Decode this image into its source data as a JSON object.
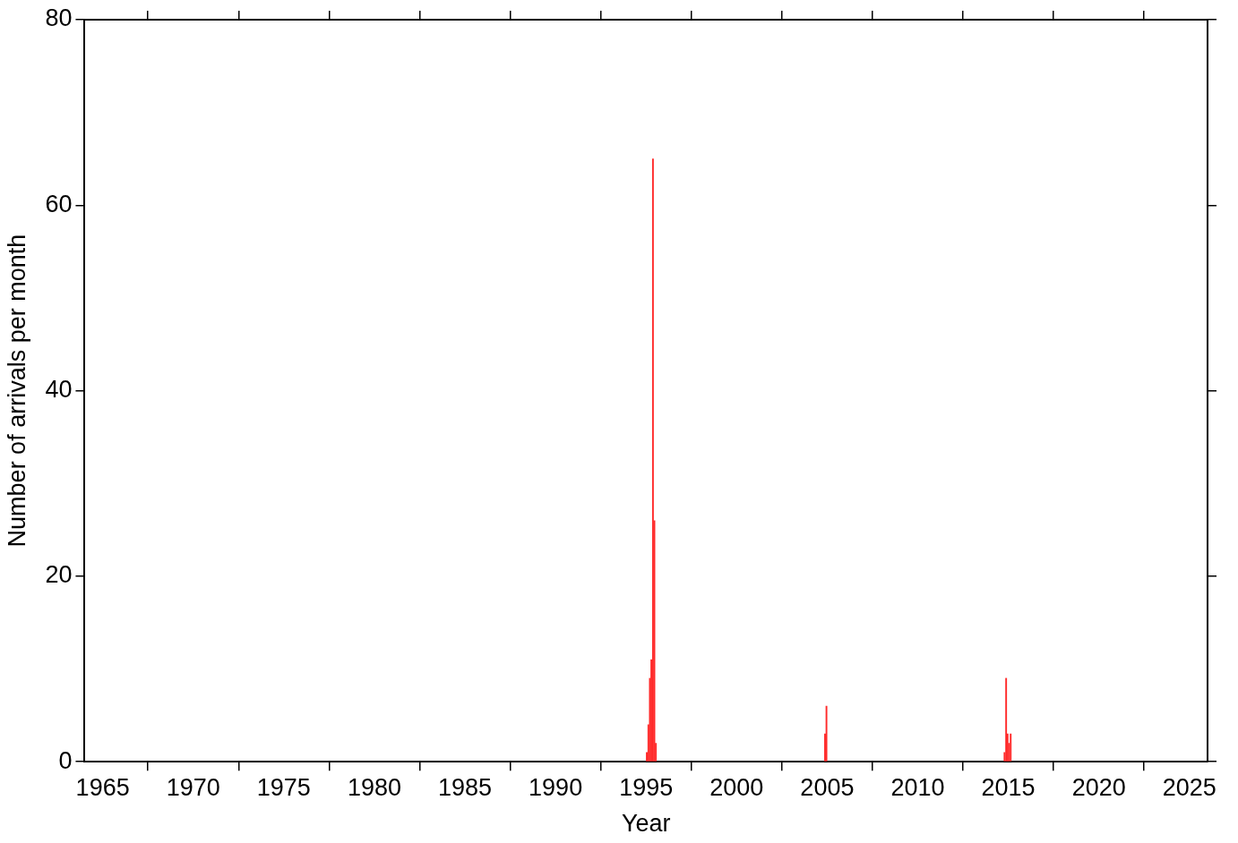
{
  "chart_data": {
    "type": "bar",
    "xlabel": "Year",
    "ylabel": "Number of arrivals per month",
    "x": [
      1995.04,
      1995.13,
      1995.21,
      1995.29,
      1995.38,
      1995.46,
      1995.54,
      2004.88,
      2004.96,
      2014.79,
      2014.88,
      2014.96,
      2015.04,
      2015.13
    ],
    "values": [
      1,
      4,
      9,
      11,
      65,
      26,
      2,
      3,
      6,
      1,
      9,
      3,
      2,
      3
    ],
    "color": "#ff2a2a",
    "xlim": [
      1964,
      2026
    ],
    "xticks": [
      1965,
      1970,
      1975,
      1980,
      1985,
      1990,
      1995,
      2000,
      2005,
      2010,
      2015,
      2020,
      2025
    ],
    "ylim": [
      0,
      80
    ],
    "yticks": [
      0,
      20,
      40,
      60,
      80
    ],
    "grid": false,
    "legend": false
  }
}
